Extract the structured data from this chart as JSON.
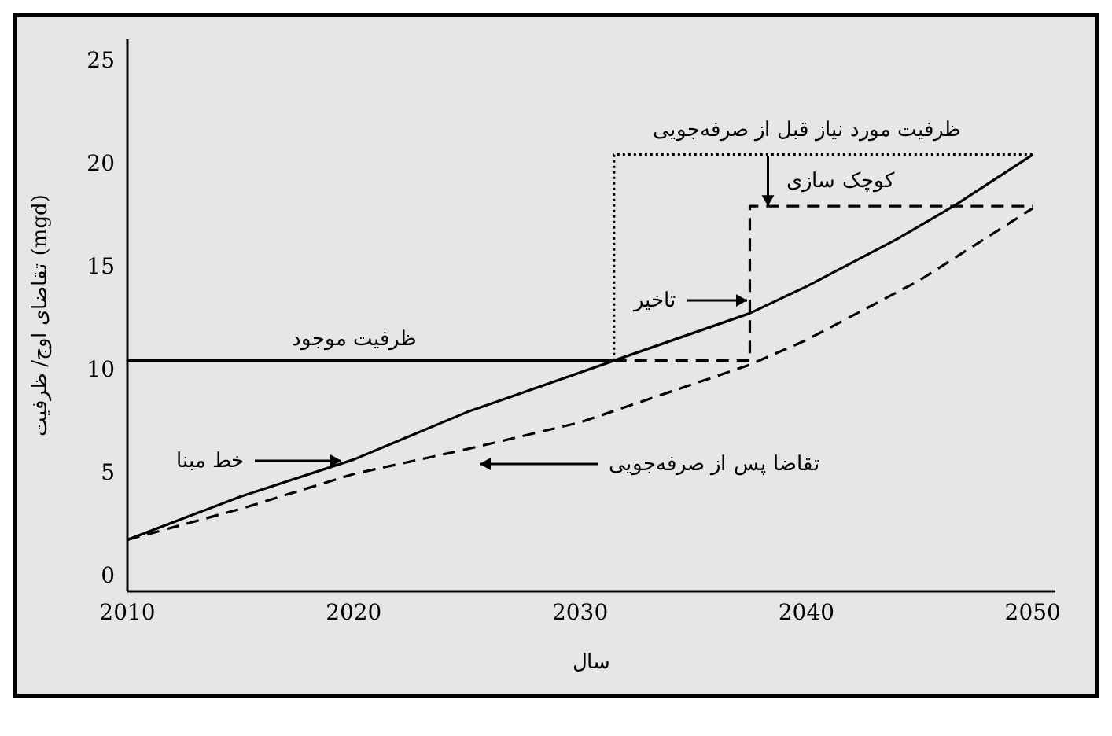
{
  "chart_data": {
    "type": "line",
    "xlabel": "سال",
    "ylabel": "تقاضای اوج/ ظرفیت (mgd)",
    "xlim": [
      2010,
      2051
    ],
    "xticks": [
      2010,
      2020,
      2030,
      2040,
      2050
    ],
    "ylim": [
      -0.8,
      26
    ],
    "yticks": [
      0,
      5,
      10,
      15,
      20,
      25
    ],
    "grid": false,
    "marker": "none",
    "series": [
      {
        "color": "#000000",
        "line_style": "solid",
        "x": [
          2010,
          2015,
          2020,
          2025,
          2031.5,
          2037.5,
          2040,
          2044,
          2046.5,
          2050
        ],
        "values": [
          1.7,
          3.8,
          5.6,
          7.9,
          10.4,
          12.7,
          14.0,
          16.3,
          17.9,
          20.4
        ]
      },
      {
        "color": "#000000",
        "line_style": "dashed",
        "x": [
          2010,
          2015,
          2020,
          2025,
          2030,
          2037.5,
          2040,
          2045,
          2050
        ],
        "values": [
          1.7,
          3.2,
          4.9,
          6.1,
          7.4,
          10.2,
          11.4,
          14.3,
          17.8
        ]
      },
      {
        "color": "#000000",
        "line_style": "solid",
        "x": [
          2010,
          2031.5
        ],
        "values": [
          10.4,
          10.4
        ]
      },
      {
        "color": "#000000",
        "line_style": "dotted",
        "x": [
          2031.5,
          2031.5,
          2050
        ],
        "values": [
          10.4,
          20.4,
          20.4
        ]
      },
      {
        "color": "#000000",
        "line_style": "dashed",
        "x": [
          2031.5,
          2037.5,
          2037.5,
          2050
        ],
        "values": [
          10.4,
          10.4,
          17.9,
          17.9
        ]
      }
    ],
    "annotations": [
      {
        "text": "ظرفیت موجود",
        "x": 2020,
        "y": 10.4
      },
      "خط مبنا",
      "تقاضا پس از صرفه‌جویی",
      "تاخیر",
      {
        "text": "ظرفیت مورد نیاز قبل از صرفه‌جویی",
        "x": 2040,
        "y": 20.4
      },
      {
        "text": "کوچک سازی",
        "x": 2038.3,
        "y": 17.9
      }
    ]
  }
}
